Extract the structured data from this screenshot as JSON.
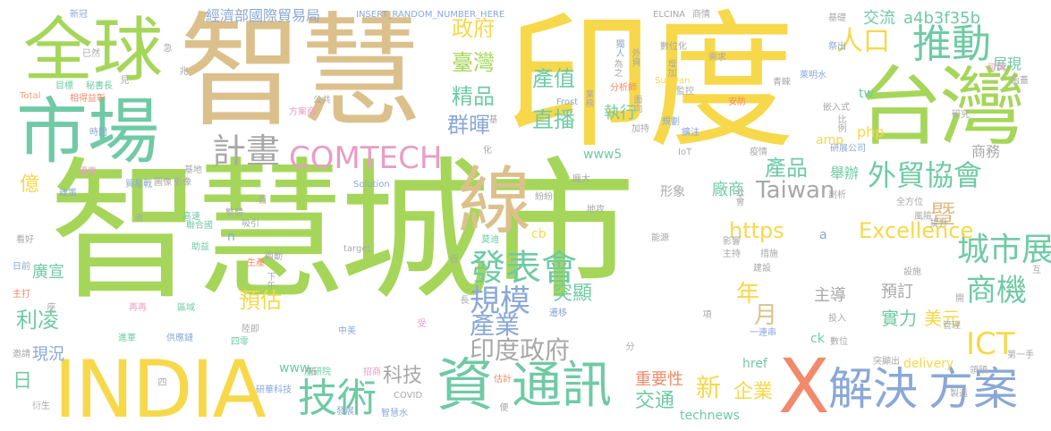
{
  "palette": {
    "yellow": "#f7d84a",
    "green": "#a5d65a",
    "tan": "#dcc08c",
    "teal": "#6fcaa5",
    "blue": "#8aa8d6",
    "pink": "#e89ec4",
    "orange": "#f0a072",
    "purple": "#b79ad8",
    "grey": "#a8a8a8",
    "salmon": "#f08a6a"
  },
  "words": [
    {
      "text": "智慧城市"
    },
    {
      "text": "印度"
    },
    {
      "text": "智慧"
    },
    {
      "text": "台灣"
    },
    {
      "text": "INDIA"
    },
    {
      "text": "市場"
    },
    {
      "text": "全球"
    },
    {
      "text": "線"
    },
    {
      "text": "X"
    },
    {
      "text": "資"
    },
    {
      "text": "通訊"
    },
    {
      "text": "解決"
    },
    {
      "text": "方案"
    },
    {
      "text": "技術"
    },
    {
      "text": "推動"
    },
    {
      "text": "計畫"
    },
    {
      "text": "COMTECH"
    },
    {
      "text": "外貿協會"
    },
    {
      "text": "發表會"
    },
    {
      "text": "城市展"
    },
    {
      "text": "商機"
    },
    {
      "text": "Excellence"
    },
    {
      "text": "Taiwan"
    },
    {
      "text": "規模"
    },
    {
      "text": "印度政府"
    },
    {
      "text": "產業"
    },
    {
      "text": "ICT"
    },
    {
      "text": "人口"
    },
    {
      "text": "政府"
    },
    {
      "text": "臺灣"
    },
    {
      "text": "精品"
    },
    {
      "text": "群暉"
    },
    {
      "text": "產值"
    },
    {
      "text": "直播"
    },
    {
      "text": "產品"
    },
    {
      "text": "https"
    },
    {
      "text": "利凌"
    },
    {
      "text": "現況"
    },
    {
      "text": "廣宣"
    },
    {
      "text": "預估"
    },
    {
      "text": "年"
    },
    {
      "text": "月"
    },
    {
      "text": "美元"
    },
    {
      "text": "實力"
    },
    {
      "text": "企業"
    },
    {
      "text": "新"
    },
    {
      "text": "交通"
    },
    {
      "text": "重要性"
    },
    {
      "text": "科技"
    },
    {
      "text": "億"
    },
    {
      "text": "日"
    },
    {
      "text": "a4b3f35b"
    },
    {
      "text": "交流"
    },
    {
      "text": "展現"
    },
    {
      "text": "商務"
    },
    {
      "text": "舉辦"
    },
    {
      "text": "廠商"
    },
    {
      "text": "形象"
    },
    {
      "text": "執行"
    },
    {
      "text": "突顯"
    },
    {
      "text": "主導"
    },
    {
      "text": "預訂"
    },
    {
      "text": "暨"
    },
    {
      "text": "經濟部國際貿易局"
    },
    {
      "text": "INSERT_RANDOM_NUMBER_HERE"
    },
    {
      "text": "www5"
    },
    {
      "text": "php"
    },
    {
      "text": "amp"
    },
    {
      "text": "tw"
    },
    {
      "text": "href"
    },
    {
      "text": "delivery"
    },
    {
      "text": "technews"
    },
    {
      "text": "ck"
    },
    {
      "text": "cb"
    },
    {
      "text": "www"
    },
    {
      "text": "n"
    },
    {
      "text": "a"
    },
    {
      "text": "新冠"
    },
    {
      "text": "已然"
    },
    {
      "text": "目標"
    },
    {
      "text": "秘書長"
    },
    {
      "text": "相得益彰"
    },
    {
      "text": "Total"
    },
    {
      "text": "時間"
    },
    {
      "text": "優惠"
    },
    {
      "text": "政策"
    },
    {
      "text": "貿易戰"
    },
    {
      "text": "影像"
    },
    {
      "text": "圖像"
    },
    {
      "text": "基地"
    },
    {
      "text": "方案商"
    },
    {
      "text": "公共"
    },
    {
      "text": "ELCINA"
    },
    {
      "text": "商情"
    },
    {
      "text": "基礎"
    },
    {
      "text": "需求"
    },
    {
      "text": "嵌入式"
    },
    {
      "text": "研究"
    },
    {
      "text": "可調"
    },
    {
      "text": "函蓋"
    },
    {
      "text": "萊明水"
    },
    {
      "text": "青睞"
    },
    {
      "text": "祭出"
    },
    {
      "text": "安防"
    },
    {
      "text": "研展公司"
    },
    {
      "text": "疫情"
    },
    {
      "text": "剖析"
    },
    {
      "text": "提升"
    },
    {
      "text": "風險"
    },
    {
      "text": "全方位"
    },
    {
      "text": "設施"
    },
    {
      "text": "建設"
    },
    {
      "text": "主持"
    },
    {
      "text": "措施"
    },
    {
      "text": "影響"
    },
    {
      "text": "能源"
    },
    {
      "text": "一連串"
    },
    {
      "text": "投入"
    },
    {
      "text": "數位"
    },
    {
      "text": "突顯出"
    },
    {
      "text": "第一手"
    },
    {
      "text": "領頭"
    },
    {
      "text": "製造"
    },
    {
      "text": "互"
    },
    {
      "text": "管理"
    },
    {
      "text": "開"
    },
    {
      "text": "莫迪"
    },
    {
      "text": "聯合國"
    },
    {
      "text": "高速"
    },
    {
      "text": "助益"
    },
    {
      "text": "兩動"
    },
    {
      "text": "生產"
    },
    {
      "text": "陸即"
    },
    {
      "text": "四零"
    },
    {
      "text": "區域"
    },
    {
      "text": "再再"
    },
    {
      "text": "進軍"
    },
    {
      "text": "供應鏈"
    },
    {
      "text": "研華科技"
    },
    {
      "text": "產研院"
    },
    {
      "text": "招商"
    },
    {
      "text": "COVID"
    },
    {
      "text": "發展"
    },
    {
      "text": "智慧水"
    },
    {
      "text": "衍生"
    },
    {
      "text": "邀請"
    },
    {
      "text": "主打"
    },
    {
      "text": "日前"
    },
    {
      "text": "看好"
    },
    {
      "text": "Solution"
    },
    {
      "text": "target"
    },
    {
      "text": "Frost"
    },
    {
      "text": "Sullivan"
    },
    {
      "text": "分析師"
    },
    {
      "text": "監控"
    },
    {
      "text": "規劃"
    },
    {
      "text": "擴注"
    },
    {
      "text": "加持"
    },
    {
      "text": "數位化"
    },
    {
      "text": "IoT"
    },
    {
      "text": "化"
    },
    {
      "text": "紛紛"
    },
    {
      "text": "龐大"
    },
    {
      "text": "地攻"
    },
    {
      "text": "中美"
    },
    {
      "text": "遷移"
    },
    {
      "text": "拓"
    },
    {
      "text": "估計"
    },
    {
      "text": "整體"
    },
    {
      "text": "吸引"
    },
    {
      "text": "表"
    },
    {
      "text": "百"
    },
    {
      "text": "下午"
    },
    {
      "text": "座"
    },
    {
      "text": "長"
    },
    {
      "text": "受"
    },
    {
      "text": "低"
    },
    {
      "text": "分"
    },
    {
      "text": "項"
    },
    {
      "text": "便"
    },
    {
      "text": "四"
    },
    {
      "text": "急"
    },
    {
      "text": "見"
    },
    {
      "text": "兆"
    },
    {
      "text": "基"
    },
    {
      "text": "外資"
    },
    {
      "text": "為之"
    },
    {
      "text": "業務"
    },
    {
      "text": "面向"
    },
    {
      "text": "增加"
    },
    {
      "text": "比例"
    },
    {
      "text": "公會"
    },
    {
      "text": "獨人"
    }
  ]
}
